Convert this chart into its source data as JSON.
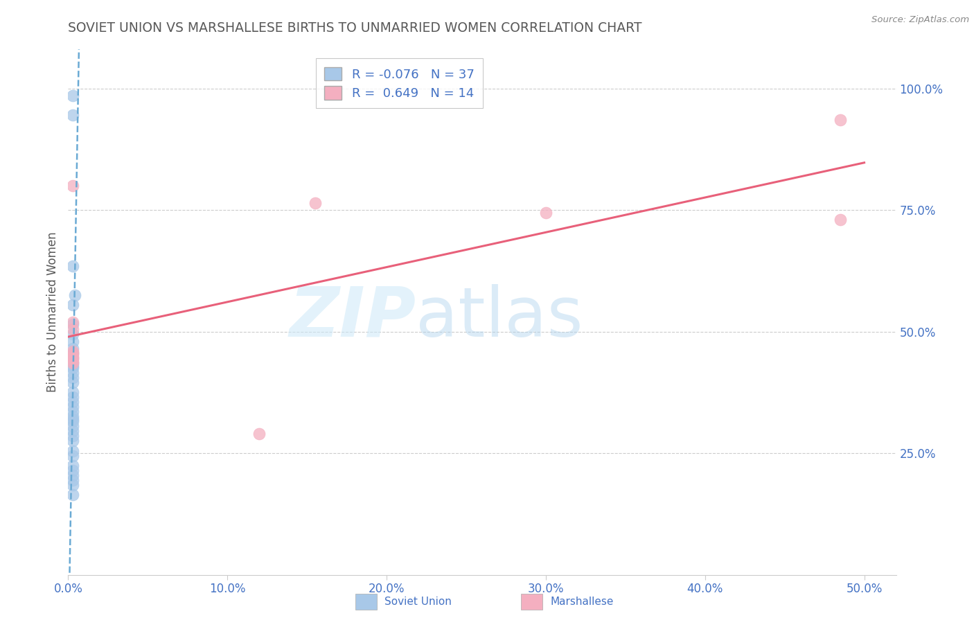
{
  "title": "SOVIET UNION VS MARSHALLESE BIRTHS TO UNMARRIED WOMEN CORRELATION CHART",
  "source_text": "Source: ZipAtlas.com",
  "ylabel_label": "Births to Unmarried Women",
  "x_tick_labels": [
    "0.0%",
    "10.0%",
    "20.0%",
    "30.0%",
    "40.0%",
    "50.0%"
  ],
  "x_tick_vals": [
    0.0,
    0.1,
    0.2,
    0.3,
    0.4,
    0.5
  ],
  "y_tick_labels": [
    "100.0%",
    "75.0%",
    "50.0%",
    "25.0%"
  ],
  "y_tick_vals": [
    1.0,
    0.75,
    0.5,
    0.25
  ],
  "xlim": [
    0.0,
    0.52
  ],
  "ylim": [
    0.0,
    1.08
  ],
  "soviet_x": [
    0.003,
    0.003,
    0.003,
    0.004,
    0.003,
    0.003,
    0.003,
    0.003,
    0.003,
    0.003,
    0.003,
    0.003,
    0.003,
    0.003,
    0.003,
    0.003,
    0.003,
    0.003,
    0.003,
    0.003,
    0.003,
    0.003,
    0.003,
    0.003,
    0.003,
    0.003,
    0.003,
    0.003,
    0.003,
    0.003,
    0.003,
    0.003,
    0.003,
    0.003,
    0.003,
    0.003,
    0.003
  ],
  "soviet_y": [
    0.985,
    0.945,
    0.635,
    0.575,
    0.555,
    0.515,
    0.495,
    0.48,
    0.465,
    0.455,
    0.445,
    0.435,
    0.43,
    0.425,
    0.415,
    0.405,
    0.395,
    0.375,
    0.365,
    0.355,
    0.345,
    0.335,
    0.325,
    0.32,
    0.315,
    0.305,
    0.295,
    0.285,
    0.275,
    0.255,
    0.245,
    0.225,
    0.215,
    0.205,
    0.195,
    0.185,
    0.165
  ],
  "marshallese_x": [
    0.003,
    0.003,
    0.003,
    0.003,
    0.003,
    0.003,
    0.003,
    0.003,
    0.003,
    0.12,
    0.155,
    0.485,
    0.485,
    0.3
  ],
  "marshallese_y": [
    0.8,
    0.52,
    0.505,
    0.46,
    0.455,
    0.45,
    0.445,
    0.44,
    0.435,
    0.29,
    0.765,
    0.935,
    0.73,
    0.745
  ],
  "soviet_color": "#a8c8e8",
  "soviet_line_color": "#6aaad4",
  "marshallese_color": "#f4afc0",
  "marshallese_line_color": "#e8607a",
  "soviet_R": "-0.076",
  "soviet_N": "37",
  "marshallese_R": "0.649",
  "marshallese_N": "14",
  "watermark_zip_color": "#cce4f5",
  "watermark_atlas_color": "#b8d8f0",
  "background_color": "#ffffff",
  "grid_color": "#cccccc",
  "axis_label_color": "#4472c4",
  "title_color": "#595959",
  "source_color": "#888888",
  "title_fontsize": 13.5,
  "axis_fontsize": 12
}
